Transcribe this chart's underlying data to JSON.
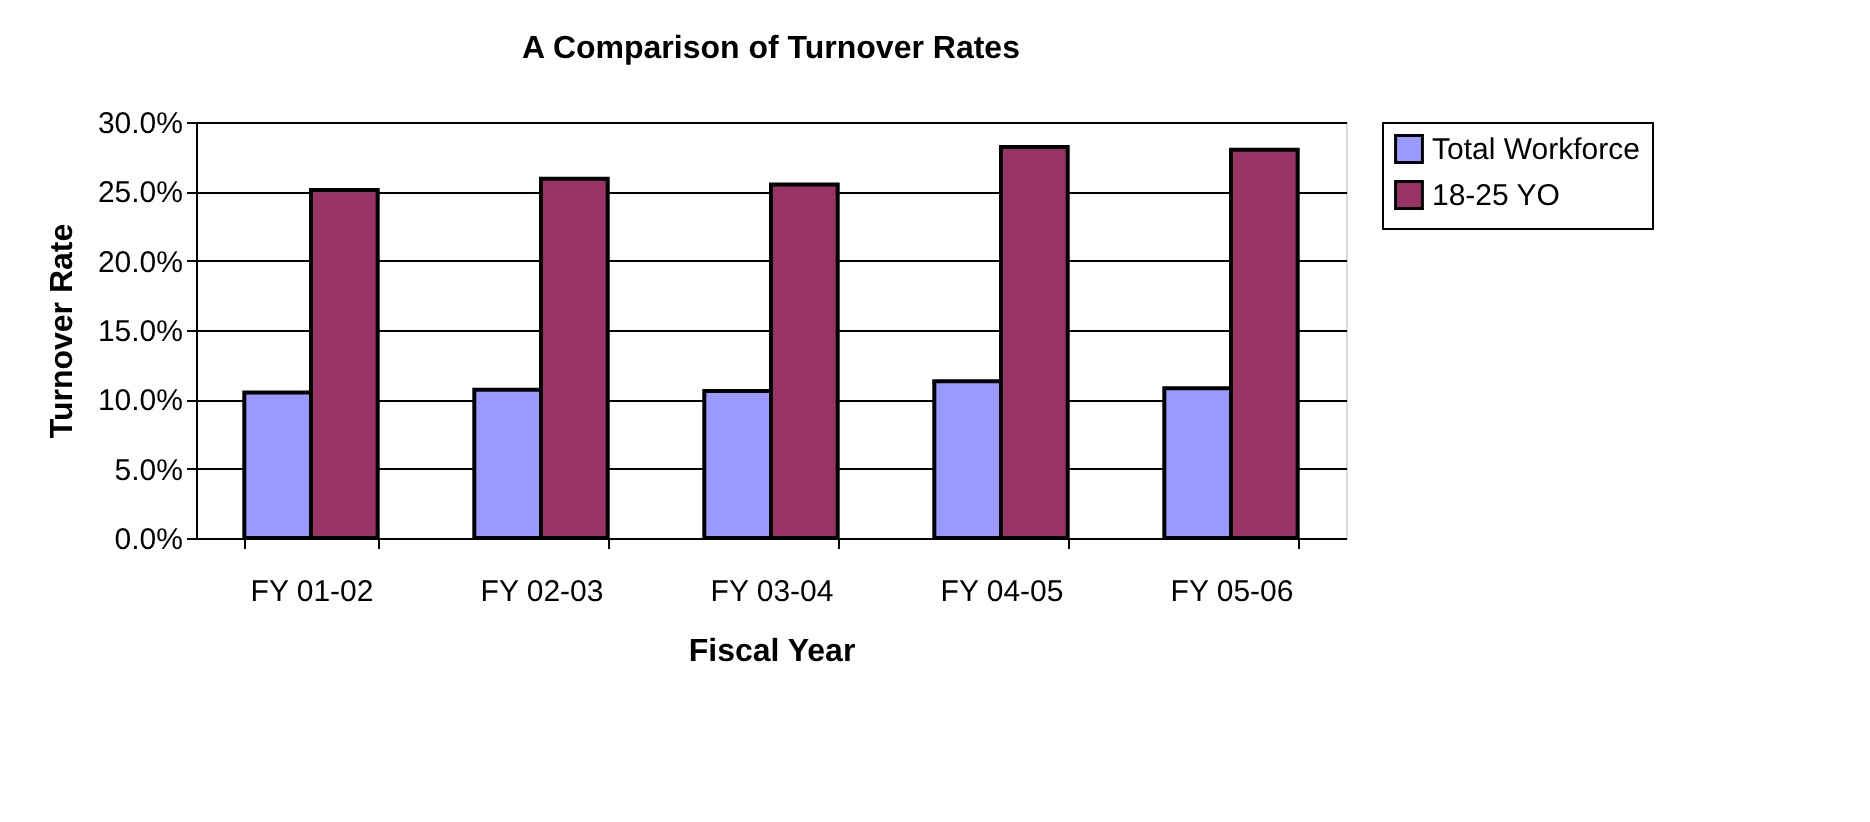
{
  "chart_data": {
    "type": "bar",
    "title": "A Comparison of Turnover Rates",
    "xlabel": "Fiscal Year",
    "ylabel": "Turnover Rate",
    "categories": [
      "FY 01-02",
      "FY 02-03",
      "FY 03-04",
      "FY 04-05",
      "FY 05-06"
    ],
    "series": [
      {
        "name": "Total Workforce",
        "color": "#9999ff",
        "values": [
          10.5,
          10.7,
          10.6,
          11.3,
          10.8
        ]
      },
      {
        "name": "18-25 YO",
        "color": "#993366",
        "values": [
          25.1,
          25.9,
          25.5,
          28.2,
          28.0
        ]
      }
    ],
    "ylim": [
      0,
      30
    ],
    "yticks": [
      {
        "value": 0,
        "label": "0.0%"
      },
      {
        "value": 5,
        "label": "5.0%"
      },
      {
        "value": 10,
        "label": "10.0%"
      },
      {
        "value": 15,
        "label": "15.0%"
      },
      {
        "value": 20,
        "label": "20.0%"
      },
      {
        "value": 25,
        "label": "25.0%"
      },
      {
        "value": 30,
        "label": "30.0%"
      }
    ],
    "grid": "y",
    "legend": "right"
  }
}
